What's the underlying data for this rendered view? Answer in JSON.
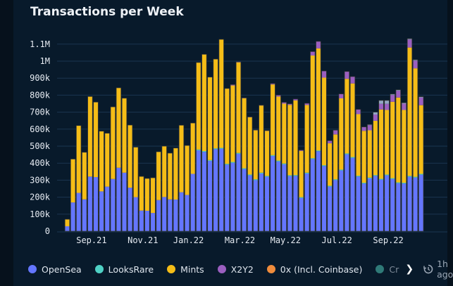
{
  "chart_data": {
    "type": "bar",
    "stacked": true,
    "title": "Transactions per Week",
    "ylim": [
      0,
      1150000
    ],
    "yticks": [
      0,
      100000,
      200000,
      300000,
      400000,
      500000,
      600000,
      700000,
      800000,
      900000,
      1000000,
      1100000
    ],
    "ytick_labels": [
      "0",
      "100k",
      "200k",
      "300k",
      "400k",
      "500k",
      "600k",
      "700k",
      "800k",
      "900k",
      "1M",
      "1.1M"
    ],
    "xtick_labels": [
      {
        "label": "Sep.21",
        "bar": 5
      },
      {
        "label": "Nov.21",
        "bar": 14
      },
      {
        "label": "Jan.22",
        "bar": 22
      },
      {
        "label": "Mar.22",
        "bar": 31
      },
      {
        "label": "May.22",
        "bar": 39
      },
      {
        "label": "Jul.22",
        "bar": 48
      },
      {
        "label": "Sep.22",
        "bar": 57
      }
    ],
    "grid": true,
    "legend_position": "bottom",
    "series": [
      {
        "name": "OpenSea",
        "color": "#6476ff",
        "values": [
          29000,
          169000,
          225000,
          187000,
          321000,
          318000,
          234000,
          262000,
          307000,
          373000,
          344000,
          256000,
          200000,
          121000,
          120000,
          107000,
          183000,
          201000,
          187000,
          186000,
          229000,
          213000,
          337000,
          475000,
          466000,
          413000,
          482000,
          485000,
          391000,
          402000,
          455000,
          365000,
          328000,
          300000,
          339000,
          320000,
          442000,
          410000,
          393000,
          324000,
          325000,
          195000,
          339000,
          424000,
          470000,
          383000,
          262000,
          300000,
          357000,
          452000,
          431000,
          321000,
          280000,
          310000,
          325000,
          303000,
          328000,
          307000,
          282000,
          280000,
          320000,
          315000,
          332000
        ]
      },
      {
        "name": "LooksRare",
        "color": "#4fd1c5",
        "values": [
          0,
          0,
          0,
          0,
          0,
          0,
          0,
          0,
          0,
          0,
          0,
          0,
          0,
          0,
          0,
          0,
          0,
          0,
          0,
          0,
          0,
          0,
          0,
          5000,
          5000,
          5000,
          5000,
          5000,
          5000,
          5000,
          5000,
          5000,
          5000,
          5000,
          5000,
          5000,
          5000,
          5000,
          5000,
          5000,
          5000,
          5000,
          5000,
          5000,
          5000,
          5000,
          5000,
          5000,
          5000,
          5000,
          5000,
          5000,
          5000,
          5000,
          5000,
          5000,
          5000,
          5000,
          5000,
          5000,
          5000,
          5000,
          5000
        ]
      },
      {
        "name": "Mints",
        "color": "#f5bd17",
        "values": [
          41000,
          255000,
          396000,
          277000,
          471000,
          441000,
          354000,
          314000,
          424000,
          470000,
          438000,
          368000,
          294000,
          201000,
          190000,
          207000,
          284000,
          299000,
          272000,
          303000,
          394000,
          291000,
          299000,
          512000,
          569000,
          488000,
          525000,
          638000,
          443000,
          450000,
          533000,
          412000,
          337000,
          288000,
          395000,
          265000,
          416000,
          377000,
          352000,
          414000,
          439000,
          272000,
          398000,
          604000,
          600000,
          515000,
          250000,
          264000,
          419000,
          439000,
          433000,
          362000,
          305000,
          278000,
          319000,
          408000,
          380000,
          449000,
          499000,
          428000,
          755000,
          638000,
          404000
        ]
      },
      {
        "name": "X2Y2",
        "color": "#9b5fc0",
        "values": [
          0,
          0,
          0,
          0,
          0,
          0,
          0,
          0,
          0,
          0,
          0,
          0,
          0,
          0,
          0,
          0,
          0,
          0,
          0,
          0,
          0,
          0,
          0,
          0,
          0,
          0,
          0,
          0,
          0,
          5000,
          3000,
          2000,
          2000,
          2000,
          2000,
          2000,
          5000,
          8000,
          8000,
          6000,
          8000,
          5000,
          10000,
          23000,
          41000,
          39000,
          15000,
          25000,
          26000,
          43000,
          40000,
          28000,
          23000,
          30000,
          37000,
          33000,
          36000,
          40000,
          40000,
          37000,
          47000,
          45000,
          45000
        ]
      },
      {
        "name": "0x (Incl. Coinbase)",
        "color": "#f08c3c",
        "values": [
          0,
          0,
          0,
          0,
          0,
          0,
          0,
          0,
          0,
          0,
          0,
          0,
          0,
          0,
          0,
          0,
          0,
          0,
          0,
          0,
          0,
          0,
          0,
          0,
          0,
          0,
          0,
          0,
          0,
          0,
          0,
          0,
          0,
          0,
          0,
          0,
          0,
          0,
          0,
          0,
          0,
          0,
          0,
          0,
          0,
          0,
          0,
          0,
          0,
          0,
          0,
          0,
          0,
          0,
          0,
          0,
          0,
          0,
          0,
          0,
          0,
          0,
          0
        ]
      },
      {
        "name": "Cr",
        "color": "#2f7a78",
        "bar_color": "#93a7c3",
        "values": [
          0,
          0,
          0,
          0,
          0,
          0,
          0,
          0,
          0,
          0,
          0,
          0,
          0,
          0,
          0,
          0,
          0,
          0,
          0,
          0,
          0,
          0,
          0,
          0,
          0,
          0,
          0,
          0,
          0,
          0,
          0,
          0,
          0,
          0,
          0,
          0,
          0,
          0,
          0,
          0,
          0,
          0,
          0,
          0,
          0,
          0,
          0,
          0,
          0,
          0,
          0,
          0,
          0,
          4000,
          14000,
          20000,
          20000,
          5000,
          5000,
          5000,
          5000,
          5000,
          5000
        ]
      }
    ]
  },
  "legend": {
    "more_icon": "chevron-right-icon"
  },
  "footer": {
    "updated_icon": "clock-history-icon",
    "updated_text": "1h ago"
  }
}
